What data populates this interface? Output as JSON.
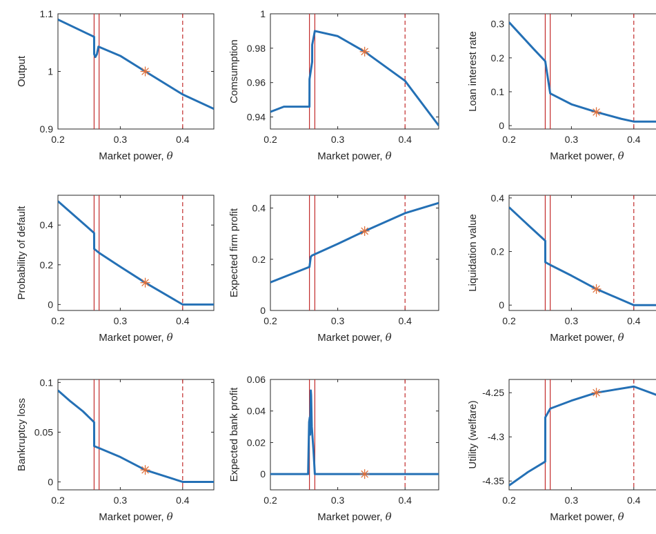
{
  "chart_data": [
    {
      "type": "line",
      "id": "output",
      "ylabel": "Output",
      "xlabel": "Market power,",
      "xlabel_symbol": "θ",
      "xlim": [
        0.2,
        0.45
      ],
      "ylim": [
        0.9,
        1.1
      ],
      "xticks": [
        0.2,
        0.3,
        0.4
      ],
      "xtick_labels": [
        "0.2",
        "0.3",
        "0.4"
      ],
      "yticks": [
        0.9,
        1,
        1.1
      ],
      "ytick_labels": [
        "0.9",
        "1",
        "1.1"
      ],
      "series": [
        {
          "x": [
            0.2,
            0.258,
            0.2581,
            0.26,
            0.2625,
            0.265,
            0.3,
            0.34,
            0.4,
            0.45
          ],
          "y": [
            1.09,
            1.06,
            1.03,
            1.025,
            1.03,
            1.043,
            1.027,
            1.0,
            0.96,
            0.935
          ]
        }
      ],
      "marker": {
        "x": 0.34,
        "y": 1.0
      },
      "vlines_solid": [
        0.258,
        0.266
      ],
      "vline_dashed": 0.4
    },
    {
      "type": "line",
      "id": "consumption",
      "ylabel": "Comsumption",
      "xlabel": "Market power,",
      "xlabel_symbol": "θ",
      "xlim": [
        0.2,
        0.45
      ],
      "ylim": [
        0.933,
        1.0
      ],
      "xticks": [
        0.2,
        0.3,
        0.4
      ],
      "xtick_labels": [
        "0.2",
        "0.3",
        "0.4"
      ],
      "yticks": [
        0.94,
        0.96,
        0.98,
        1
      ],
      "ytick_labels": [
        "0.94",
        "0.96",
        "0.98",
        "1"
      ],
      "series": [
        {
          "x": [
            0.2,
            0.22,
            0.24,
            0.258,
            0.2581,
            0.262,
            0.2621,
            0.266,
            0.3,
            0.34,
            0.4,
            0.45
          ],
          "y": [
            0.943,
            0.946,
            0.946,
            0.946,
            0.962,
            0.972,
            0.982,
            0.99,
            0.987,
            0.978,
            0.961,
            0.935
          ]
        }
      ],
      "marker": {
        "x": 0.34,
        "y": 0.978
      },
      "vlines_solid": [
        0.258,
        0.266
      ],
      "vline_dashed": 0.4
    },
    {
      "type": "line",
      "id": "loan-rate",
      "ylabel": "Loan interest rate",
      "xlabel": "Market power,",
      "xlabel_symbol": "θ",
      "xlim": [
        0.2,
        0.45
      ],
      "ylim": [
        -0.01,
        0.33
      ],
      "xticks": [
        0.2,
        0.3,
        0.4
      ],
      "xtick_labels": [
        "0.2",
        "0.3",
        "0.4"
      ],
      "yticks": [
        0,
        0.1,
        0.2,
        0.3
      ],
      "ytick_labels": [
        "0",
        "0.1",
        "0.2",
        "0.3"
      ],
      "series": [
        {
          "x": [
            0.2,
            0.22,
            0.24,
            0.258,
            0.266,
            0.3,
            0.34,
            0.38,
            0.4,
            0.45
          ],
          "y": [
            0.305,
            0.265,
            0.225,
            0.19,
            0.095,
            0.063,
            0.04,
            0.02,
            0.012,
            0.012
          ]
        }
      ],
      "marker": {
        "x": 0.34,
        "y": 0.04
      },
      "vlines_solid": [
        0.258,
        0.266
      ],
      "vline_dashed": 0.4
    },
    {
      "type": "line",
      "id": "default-prob",
      "ylabel": "Probability of default",
      "xlabel": "Market power,",
      "xlabel_symbol": "θ",
      "xlim": [
        0.2,
        0.45
      ],
      "ylim": [
        -0.03,
        0.55
      ],
      "xticks": [
        0.2,
        0.3,
        0.4
      ],
      "xtick_labels": [
        "0.2",
        "0.3",
        "0.4"
      ],
      "yticks": [
        0,
        0.2,
        0.4
      ],
      "ytick_labels": [
        "0",
        "0.2",
        "0.4"
      ],
      "series": [
        {
          "x": [
            0.2,
            0.258,
            0.2581,
            0.266,
            0.3,
            0.34,
            0.4,
            0.45
          ],
          "y": [
            0.52,
            0.36,
            0.28,
            0.26,
            0.19,
            0.11,
            0.0,
            0.0
          ]
        }
      ],
      "marker": {
        "x": 0.34,
        "y": 0.11
      },
      "vlines_solid": [
        0.258,
        0.266
      ],
      "vline_dashed": 0.4
    },
    {
      "type": "line",
      "id": "firm-profit",
      "ylabel": "Expected firm profit",
      "xlabel": "Market power,",
      "xlabel_symbol": "θ",
      "xlim": [
        0.2,
        0.45
      ],
      "ylim": [
        0.0,
        0.45
      ],
      "xticks": [
        0.2,
        0.3,
        0.4
      ],
      "xtick_labels": [
        "0.2",
        "0.3",
        "0.4"
      ],
      "yticks": [
        0,
        0.2,
        0.4
      ],
      "ytick_labels": [
        "0",
        "0.2",
        "0.4"
      ],
      "series": [
        {
          "x": [
            0.2,
            0.258,
            0.26,
            0.262,
            0.3,
            0.34,
            0.4,
            0.45
          ],
          "y": [
            0.11,
            0.17,
            0.21,
            0.215,
            0.26,
            0.31,
            0.38,
            0.42
          ]
        }
      ],
      "marker": {
        "x": 0.34,
        "y": 0.31
      },
      "vlines_solid": [
        0.258,
        0.266
      ],
      "vline_dashed": 0.4
    },
    {
      "type": "line",
      "id": "liquidation",
      "ylabel": "Liquidation value",
      "xlabel": "Market power,",
      "xlabel_symbol": "θ",
      "xlim": [
        0.2,
        0.45
      ],
      "ylim": [
        -0.02,
        0.41
      ],
      "xticks": [
        0.2,
        0.3,
        0.4
      ],
      "xtick_labels": [
        "0.2",
        "0.3",
        "0.4"
      ],
      "yticks": [
        0,
        0.2,
        0.4
      ],
      "ytick_labels": [
        "0",
        "0.2",
        "0.4"
      ],
      "series": [
        {
          "x": [
            0.2,
            0.23,
            0.258,
            0.2581,
            0.266,
            0.3,
            0.34,
            0.4,
            0.45
          ],
          "y": [
            0.365,
            0.3,
            0.24,
            0.16,
            0.15,
            0.11,
            0.06,
            0.0,
            0.0
          ]
        }
      ],
      "marker": {
        "x": 0.34,
        "y": 0.06
      },
      "vlines_solid": [
        0.258,
        0.266
      ],
      "vline_dashed": 0.4
    },
    {
      "type": "line",
      "id": "bankruptcy-loss",
      "ylabel": "Bankruptcy loss",
      "xlabel": "Market power,",
      "xlabel_symbol": "θ",
      "xlim": [
        0.2,
        0.45
      ],
      "ylim": [
        -0.008,
        0.103
      ],
      "xticks": [
        0.2,
        0.3,
        0.4
      ],
      "xtick_labels": [
        "0.2",
        "0.3",
        "0.4"
      ],
      "yticks": [
        0,
        0.05,
        0.1
      ],
      "ytick_labels": [
        "0",
        "0.05",
        "0.1"
      ],
      "series": [
        {
          "x": [
            0.2,
            0.22,
            0.24,
            0.258,
            0.2581,
            0.266,
            0.3,
            0.34,
            0.4,
            0.45
          ],
          "y": [
            0.092,
            0.081,
            0.071,
            0.06,
            0.036,
            0.034,
            0.025,
            0.012,
            0.0,
            0.0
          ]
        }
      ],
      "marker": {
        "x": 0.34,
        "y": 0.012
      },
      "vlines_solid": [
        0.258,
        0.266
      ],
      "vline_dashed": 0.4
    },
    {
      "type": "line",
      "id": "bank-profit",
      "ylabel": "Expected bank profit",
      "xlabel": "Market power,",
      "xlabel_symbol": "θ",
      "xlim": [
        0.2,
        0.45
      ],
      "ylim": [
        -0.01,
        0.06
      ],
      "xticks": [
        0.2,
        0.3,
        0.4
      ],
      "xtick_labels": [
        "0.2",
        "0.3",
        "0.4"
      ],
      "yticks": [
        0,
        0.02,
        0.04,
        0.06
      ],
      "ytick_labels": [
        "0",
        "0.02",
        "0.04",
        "0.06"
      ],
      "series": [
        {
          "x": [
            0.2,
            0.256,
            0.2575,
            0.2585,
            0.259,
            0.26,
            0.2605,
            0.2615,
            0.264,
            0.266,
            0.45
          ],
          "y": [
            0.0,
            0.0,
            0.033,
            0.036,
            0.025,
            0.053,
            0.05,
            0.03,
            0.015,
            0.0,
            0.0
          ]
        }
      ],
      "marker": {
        "x": 0.34,
        "y": 0.0
      },
      "vlines_solid": [
        0.258,
        0.266
      ],
      "vline_dashed": 0.4
    },
    {
      "type": "line",
      "id": "utility",
      "ylabel": "Utility (welfare)",
      "xlabel": "Market power,",
      "xlabel_symbol": "θ",
      "xlim": [
        0.2,
        0.45
      ],
      "ylim": [
        -4.36,
        -4.235
      ],
      "xticks": [
        0.2,
        0.3,
        0.4
      ],
      "xtick_labels": [
        "0.2",
        "0.3",
        "0.4"
      ],
      "yticks": [
        -4.35,
        -4.3,
        -4.25
      ],
      "ytick_labels": [
        "-4.35",
        "-4.3",
        "-4.25"
      ],
      "series": [
        {
          "x": [
            0.2,
            0.23,
            0.258,
            0.2581,
            0.266,
            0.3,
            0.34,
            0.4,
            0.45
          ],
          "y": [
            -4.355,
            -4.34,
            -4.328,
            -4.278,
            -4.268,
            -4.259,
            -4.25,
            -4.243,
            -4.256
          ]
        }
      ],
      "marker": {
        "x": 0.34,
        "y": -4.25
      },
      "vlines_solid": [
        0.258,
        0.266
      ],
      "vline_dashed": 0.4
    }
  ],
  "colors": {
    "line": "#2470b5",
    "marker": "#e0703a",
    "vline": "#c22a2a",
    "axis": "#262626",
    "text": "#262626"
  }
}
